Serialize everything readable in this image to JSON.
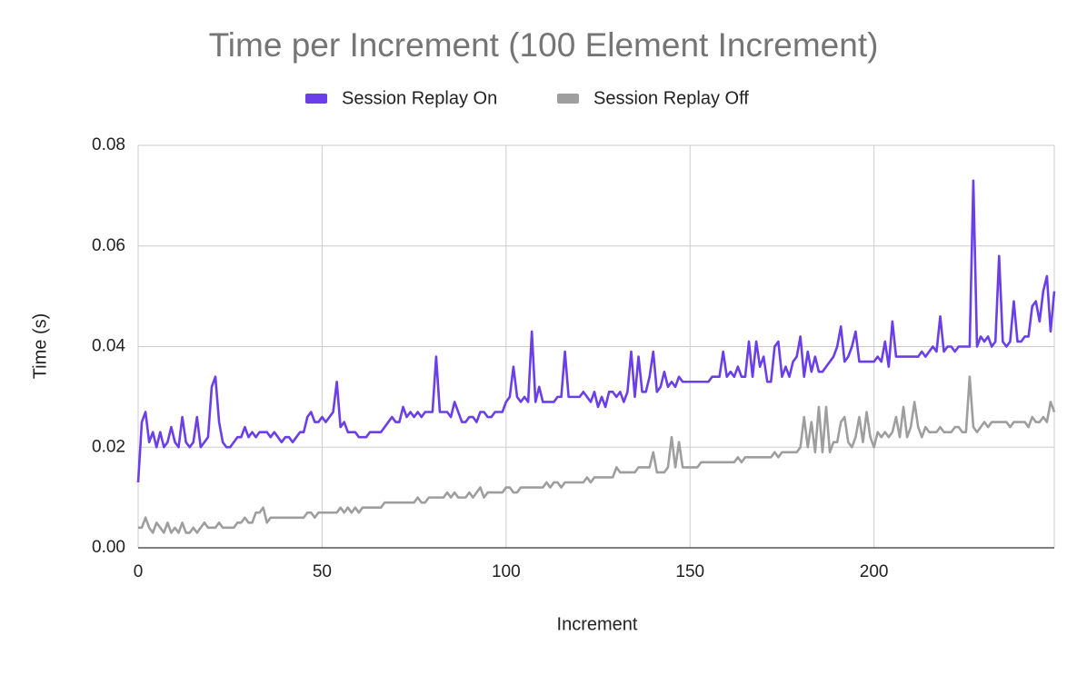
{
  "chart_data": {
    "type": "line",
    "title": "Time per Increment (100 Element Increment)",
    "x_label": "Increment",
    "y_label": "Time (s)",
    "grid": true,
    "legend": "top",
    "xlim": [
      0,
      249
    ],
    "ylim": [
      0,
      0.08
    ],
    "xticks": [
      0,
      50,
      100,
      150,
      200
    ],
    "yticks": [
      {
        "value": 0,
        "label": "0.00"
      },
      0.02,
      0.04,
      0.06,
      0.08
    ],
    "x": [
      0,
      1,
      2,
      3,
      4,
      5,
      6,
      7,
      8,
      9,
      10,
      11,
      12,
      13,
      14,
      15,
      16,
      17,
      18,
      19,
      20,
      21,
      22,
      23,
      24,
      25,
      26,
      27,
      28,
      29,
      30,
      31,
      32,
      33,
      34,
      35,
      36,
      37,
      38,
      39,
      40,
      41,
      42,
      43,
      44,
      45,
      46,
      47,
      48,
      49,
      50,
      51,
      52,
      53,
      54,
      55,
      56,
      57,
      58,
      59,
      60,
      61,
      62,
      63,
      64,
      65,
      66,
      67,
      68,
      69,
      70,
      71,
      72,
      73,
      74,
      75,
      76,
      77,
      78,
      79,
      80,
      81,
      82,
      83,
      84,
      85,
      86,
      87,
      88,
      89,
      90,
      91,
      92,
      93,
      94,
      95,
      96,
      97,
      98,
      99,
      100,
      101,
      102,
      103,
      104,
      105,
      106,
      107,
      108,
      109,
      110,
      111,
      112,
      113,
      114,
      115,
      116,
      117,
      118,
      119,
      120,
      121,
      122,
      123,
      124,
      125,
      126,
      127,
      128,
      129,
      130,
      131,
      132,
      133,
      134,
      135,
      136,
      137,
      138,
      139,
      140,
      141,
      142,
      143,
      144,
      145,
      146,
      147,
      148,
      149,
      150,
      151,
      152,
      153,
      154,
      155,
      156,
      157,
      158,
      159,
      160,
      161,
      162,
      163,
      164,
      165,
      166,
      167,
      168,
      169,
      170,
      171,
      172,
      173,
      174,
      175,
      176,
      177,
      178,
      179,
      180,
      181,
      182,
      183,
      184,
      185,
      186,
      187,
      188,
      189,
      190,
      191,
      192,
      193,
      194,
      195,
      196,
      197,
      198,
      199,
      200,
      201,
      202,
      203,
      204,
      205,
      206,
      207,
      208,
      209,
      210,
      211,
      212,
      213,
      214,
      215,
      216,
      217,
      218,
      219,
      220,
      221,
      222,
      223,
      224,
      225,
      226,
      227,
      228,
      229,
      230,
      231,
      232,
      233,
      234,
      235,
      236,
      237,
      238,
      239,
      240,
      241,
      242,
      243,
      244,
      245,
      246,
      247,
      248,
      249
    ],
    "series": [
      {
        "name": "Session Replay On",
        "color": "#6a3ee8",
        "values": [
          0.013,
          0.025,
          0.027,
          0.021,
          0.023,
          0.02,
          0.023,
          0.02,
          0.021,
          0.024,
          0.021,
          0.02,
          0.026,
          0.021,
          0.02,
          0.021,
          0.026,
          0.02,
          0.021,
          0.022,
          0.032,
          0.034,
          0.025,
          0.021,
          0.02,
          0.02,
          0.021,
          0.022,
          0.022,
          0.024,
          0.022,
          0.023,
          0.022,
          0.023,
          0.023,
          0.023,
          0.022,
          0.023,
          0.022,
          0.021,
          0.022,
          0.022,
          0.021,
          0.022,
          0.023,
          0.023,
          0.026,
          0.027,
          0.025,
          0.025,
          0.026,
          0.025,
          0.026,
          0.027,
          0.033,
          0.024,
          0.025,
          0.023,
          0.023,
          0.023,
          0.022,
          0.022,
          0.022,
          0.023,
          0.023,
          0.023,
          0.023,
          0.024,
          0.025,
          0.026,
          0.025,
          0.025,
          0.028,
          0.026,
          0.027,
          0.026,
          0.027,
          0.026,
          0.027,
          0.027,
          0.027,
          0.038,
          0.027,
          0.027,
          0.027,
          0.026,
          0.029,
          0.027,
          0.025,
          0.025,
          0.026,
          0.026,
          0.025,
          0.027,
          0.027,
          0.026,
          0.026,
          0.027,
          0.027,
          0.027,
          0.029,
          0.03,
          0.036,
          0.03,
          0.029,
          0.03,
          0.029,
          0.043,
          0.029,
          0.032,
          0.029,
          0.029,
          0.029,
          0.029,
          0.03,
          0.03,
          0.039,
          0.03,
          0.03,
          0.03,
          0.03,
          0.031,
          0.03,
          0.029,
          0.031,
          0.028,
          0.03,
          0.028,
          0.031,
          0.031,
          0.03,
          0.031,
          0.029,
          0.031,
          0.039,
          0.03,
          0.038,
          0.031,
          0.031,
          0.034,
          0.039,
          0.031,
          0.032,
          0.035,
          0.032,
          0.033,
          0.032,
          0.034,
          0.033,
          0.033,
          0.033,
          0.033,
          0.033,
          0.033,
          0.033,
          0.033,
          0.034,
          0.034,
          0.034,
          0.039,
          0.034,
          0.035,
          0.034,
          0.036,
          0.034,
          0.034,
          0.041,
          0.034,
          0.041,
          0.036,
          0.038,
          0.033,
          0.033,
          0.04,
          0.041,
          0.034,
          0.036,
          0.034,
          0.037,
          0.038,
          0.042,
          0.034,
          0.039,
          0.035,
          0.038,
          0.035,
          0.035,
          0.036,
          0.037,
          0.038,
          0.04,
          0.044,
          0.037,
          0.038,
          0.04,
          0.043,
          0.037,
          0.037,
          0.037,
          0.037,
          0.037,
          0.038,
          0.037,
          0.041,
          0.036,
          0.045,
          0.038,
          0.038,
          0.038,
          0.038,
          0.038,
          0.038,
          0.038,
          0.039,
          0.038,
          0.039,
          0.04,
          0.039,
          0.046,
          0.039,
          0.04,
          0.04,
          0.039,
          0.04,
          0.04,
          0.04,
          0.04,
          0.073,
          0.04,
          0.042,
          0.041,
          0.042,
          0.04,
          0.041,
          0.058,
          0.041,
          0.04,
          0.041,
          0.049,
          0.041,
          0.041,
          0.042,
          0.042,
          0.048,
          0.049,
          0.045,
          0.051,
          0.054,
          0.043,
          0.051
        ]
      },
      {
        "name": "Session Replay Off",
        "color": "#9e9e9e",
        "values": [
          0.004,
          0.004,
          0.006,
          0.004,
          0.003,
          0.005,
          0.004,
          0.003,
          0.005,
          0.003,
          0.004,
          0.003,
          0.005,
          0.003,
          0.003,
          0.004,
          0.003,
          0.004,
          0.005,
          0.004,
          0.004,
          0.004,
          0.005,
          0.004,
          0.004,
          0.004,
          0.004,
          0.005,
          0.005,
          0.006,
          0.005,
          0.005,
          0.007,
          0.007,
          0.008,
          0.005,
          0.006,
          0.006,
          0.006,
          0.006,
          0.006,
          0.006,
          0.006,
          0.006,
          0.006,
          0.006,
          0.007,
          0.007,
          0.006,
          0.007,
          0.007,
          0.007,
          0.007,
          0.007,
          0.007,
          0.008,
          0.007,
          0.008,
          0.007,
          0.008,
          0.007,
          0.008,
          0.008,
          0.008,
          0.008,
          0.008,
          0.008,
          0.009,
          0.009,
          0.009,
          0.009,
          0.009,
          0.009,
          0.009,
          0.009,
          0.009,
          0.01,
          0.009,
          0.009,
          0.01,
          0.01,
          0.01,
          0.01,
          0.01,
          0.011,
          0.01,
          0.011,
          0.01,
          0.01,
          0.01,
          0.011,
          0.01,
          0.011,
          0.012,
          0.01,
          0.011,
          0.011,
          0.011,
          0.011,
          0.011,
          0.012,
          0.012,
          0.011,
          0.011,
          0.012,
          0.012,
          0.012,
          0.012,
          0.012,
          0.012,
          0.012,
          0.013,
          0.012,
          0.013,
          0.013,
          0.012,
          0.013,
          0.013,
          0.013,
          0.013,
          0.013,
          0.013,
          0.014,
          0.013,
          0.014,
          0.014,
          0.014,
          0.014,
          0.014,
          0.014,
          0.016,
          0.015,
          0.015,
          0.015,
          0.015,
          0.015,
          0.016,
          0.016,
          0.016,
          0.016,
          0.019,
          0.015,
          0.015,
          0.015,
          0.016,
          0.022,
          0.016,
          0.021,
          0.016,
          0.016,
          0.016,
          0.016,
          0.016,
          0.017,
          0.017,
          0.017,
          0.017,
          0.017,
          0.017,
          0.017,
          0.017,
          0.017,
          0.017,
          0.018,
          0.017,
          0.018,
          0.018,
          0.018,
          0.018,
          0.018,
          0.018,
          0.018,
          0.018,
          0.019,
          0.018,
          0.019,
          0.019,
          0.019,
          0.019,
          0.019,
          0.02,
          0.026,
          0.02,
          0.025,
          0.019,
          0.028,
          0.019,
          0.028,
          0.019,
          0.021,
          0.021,
          0.025,
          0.026,
          0.021,
          0.02,
          0.022,
          0.026,
          0.021,
          0.027,
          0.022,
          0.02,
          0.023,
          0.022,
          0.023,
          0.022,
          0.023,
          0.026,
          0.022,
          0.028,
          0.022,
          0.024,
          0.029,
          0.024,
          0.022,
          0.024,
          0.023,
          0.023,
          0.023,
          0.024,
          0.023,
          0.023,
          0.023,
          0.024,
          0.024,
          0.023,
          0.023,
          0.034,
          0.024,
          0.023,
          0.024,
          0.025,
          0.024,
          0.025,
          0.025,
          0.025,
          0.025,
          0.025,
          0.024,
          0.025,
          0.025,
          0.025,
          0.025,
          0.024,
          0.026,
          0.025,
          0.025,
          0.026,
          0.025,
          0.029,
          0.027
        ]
      }
    ]
  }
}
